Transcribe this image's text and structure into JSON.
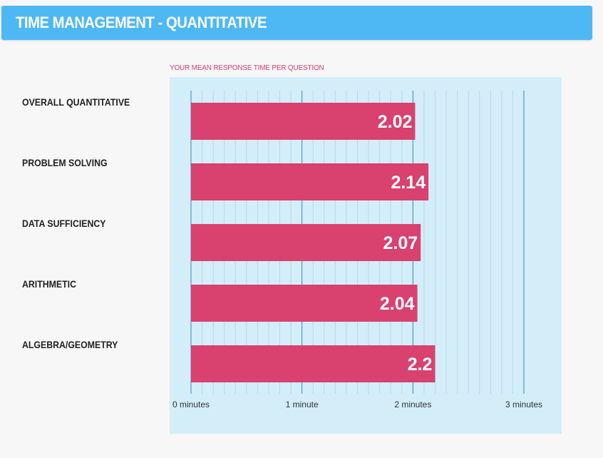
{
  "header": {
    "title": "TIME MANAGEMENT - QUANTITATIVE"
  },
  "colors": {
    "header_bg": "#4eb8f5",
    "bar": "#d9416f",
    "panel_bg": "#d3eef9",
    "major_gridline": "#3b86c4",
    "minor_gridline": "#b9d8e6",
    "subtitle": "#d9416f"
  },
  "chart_data": {
    "type": "bar",
    "orientation": "horizontal",
    "title": "YOUR MEAN RESPONSE TIME PER QUESTION",
    "categories": [
      "OVERALL QUANTITATIVE",
      "PROBLEM SOLVING",
      "DATA SUFFICIENCY",
      "ARITHMETIC",
      "ALGEBRA/GEOMETRY"
    ],
    "values": [
      2.02,
      2.14,
      2.07,
      2.04,
      2.2
    ],
    "data_labels": [
      "2.02",
      "2.14",
      "2.07",
      "2.04",
      "2.2"
    ],
    "xlim": [
      0,
      3
    ],
    "x_ticks": [
      0,
      1,
      2,
      3
    ],
    "x_tick_labels": [
      "0 minutes",
      "1 minute",
      "2 minutes",
      "3 minutes"
    ],
    "minor_grid_step": 0.1,
    "grid": true
  }
}
